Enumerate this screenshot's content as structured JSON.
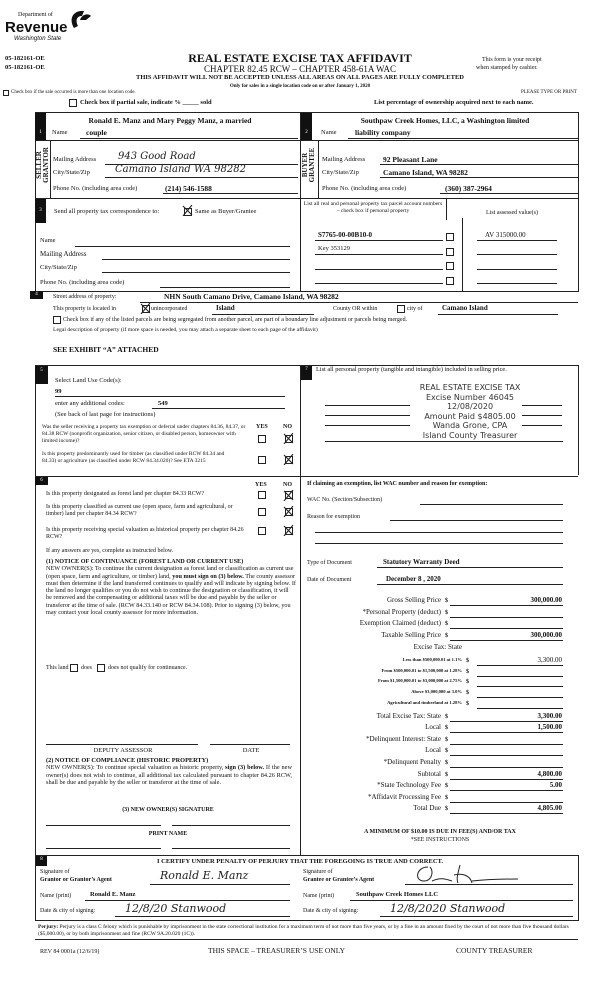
{
  "header": {
    "logo": {
      "line1": "Department of",
      "line2": "Revenue",
      "line3": "Washington State"
    },
    "codes": [
      "05-182161-OE",
      "05-182161-OE"
    ],
    "title": "REAL ESTATE EXCISE TAX AFFIDAVIT",
    "subtitle": "CHAPTER 82.45 RCW – CHAPTER 458-61A WAC",
    "receipt_note_1": "This form is your receipt",
    "receipt_note_2": "when stamped by cashier.",
    "warning": "THIS AFFIDAVIT WILL NOT BE ACCEPTED UNLESS ALL AREAS ON ALL PAGES ARE FULLY COMPLETED",
    "only_for": "Only for sales in a single location code on or after January 1, 2020",
    "check_location": "Check box if the sale occurred is more than one location code.",
    "please_type": "PLEASE TYPE OR PRINT",
    "partial_sale": "Check box if partial sale, indicate % _____ sold",
    "list_percentage": "List percentage of ownership acquired next to each name."
  },
  "seller": {
    "number": "1",
    "side_label_1": "SELLER",
    "side_label_2": "GRANTOR",
    "name_line1": "Ronald E. Manz and Mary Peggy Manz, a married",
    "name_label": "Name",
    "name_line2": "couple",
    "mailing_label": "Mailing Address",
    "mailing": "943 Good Road",
    "city_label": "City/State/Zip",
    "city": "Camano Island WA 98282",
    "phone_label": "Phone No. (including area code)",
    "phone": "(214) 546-1588"
  },
  "buyer": {
    "number": "2",
    "side_label_1": "BUYER",
    "side_label_2": "GRANTEE",
    "name_line1": "Southpaw Creek Homes, LLC, a Washington limited",
    "name_label": "Name",
    "name_line2": "liability company",
    "mailing_label": "Mailing Address",
    "mailing": "92 Pleasant Lane",
    "city_label": "City/State/Zip",
    "city": "Camano Island, WA 98282",
    "phone_label": "Phone No. (including area code)",
    "phone": "(360) 387-2964"
  },
  "section3": {
    "number": "3",
    "send_to": "Send all property tax correspondence to:",
    "same_as": "Same as Buyer/Grantee",
    "same_as_checked": true,
    "name_label": "Name",
    "mailing_label": "Mailing Address",
    "city_label": "City/State/Zip",
    "phone_label": "Phone No. (including area code)",
    "parcel_header": "List all real and personal property tax parcel account numbers – check box if personal property",
    "assessed_header": "List assessed value(s)",
    "parcels": [
      {
        "number": "S7765-00-00B10-0",
        "value": "AV 315000.00"
      },
      {
        "number": "Key 353129",
        "value": ""
      },
      {
        "number": "",
        "value": ""
      },
      {
        "number": "",
        "value": ""
      }
    ]
  },
  "section4": {
    "number": "4",
    "street_label": "Street address of property:",
    "street": "NHN South Camano Drive, Camano Island, WA  98282",
    "located_in": "This property is located in",
    "unincorporated": "unincorporated",
    "unincorporated_checked": true,
    "county": "Island",
    "county_or": "County OR  within",
    "city_of": "city of",
    "city": "Camano Island",
    "segregated": "Check box if any of the listed parcels are being segregated from another parcel, are part of a boundary line adjustment or parcels being merged.",
    "legal_desc": "Legal description of property (if more space is needed, you may attach a separate sheet to each page of the affidavit)",
    "exhibit": "SEE EXHIBIT “A” ATTACHED"
  },
  "section5": {
    "number": "5",
    "land_use_label": "Select Land Use Code(s):",
    "land_use_code": "99",
    "additional_label": "enter any additional codes:",
    "additional_code": "549",
    "see_back": "(See back of last page for instructions)",
    "yes": "YES",
    "no": "NO",
    "questions": [
      {
        "text": "Was the seller receiving a property tax exemption or deferral under chapters 84.36, 84.37, or 84.38 RCW (nonprofit organization, senior citizen, or disabled person, homeowner with limited income)?",
        "answer": "NO"
      },
      {
        "text": "Is this property predominantly used for timber (as classified under RCW 84.34 and 84.33) or agriculture (as classified under RCW 84.34.020)? See ETA 3215",
        "answer": "NO"
      }
    ]
  },
  "section6": {
    "number": "6",
    "yes": "YES",
    "no": "NO",
    "questions": [
      {
        "text": "Is this property designated as forest land per chapter 84.33 RCW?",
        "answer": "NO"
      },
      {
        "text": "Is this property classified as current use (open space, farm and agricultural, or timber) land per chapter 84.34 RCW?",
        "answer": "NO"
      },
      {
        "text": "Is this property receiving special valuation as historical property per chapter 84.26 RCW?",
        "answer": "NO"
      }
    ],
    "if_yes": "If any answers are yes, complete as instructed below.",
    "notice1_title": "(1) NOTICE OF CONTINUANCE (FOREST LAND OR CURRENT USE)",
    "notice1_a": "NEW OWNER(S): To continue the current designation as forest land or classification as current use (open space, farm and agriculture, or timber) land,",
    "notice1_bold": "you must sign on (3) below.",
    "notice1_b": "The county assessor must then determine if the land transferred continues to qualify and will indicate by signing below. If the land no longer qualifies or you do not wish to continue the designation or classification, it will be removed and the compensating or additional taxes will be due and payable by the seller or transferor at the time of sale. (RCW 84.33.140 or RCW 84.34.108). Prior to signing (3) below, you may contact your local county assessor for more information.",
    "this_land": "This land",
    "does": "does",
    "does_not": "does not qualify for continuance.",
    "deputy_assessor": "DEPUTY ASSESSOR",
    "date": "DATE",
    "notice2_title": "(2) NOTICE OF COMPLIANCE (HISTORIC PROPERTY)",
    "notice2_a": "NEW OWNER(S): To continue special valuation as historic property,",
    "notice2_bold": "sign (3) below.",
    "notice2_b": "If the new owner(s) does not wish to continue, all additional tax calculated pursuant to chapter 84.26 RCW, shall be due and payable by the seller or transferor at the time of sale.",
    "notice3_title": "(3)  NEW OWNER(S) SIGNATURE",
    "print_name": "PRINT NAME"
  },
  "section7": {
    "number": "7",
    "personal_property": "List all personal property (tangible and intangible) included in selling price.",
    "stamp": [
      "REAL ESTATE EXCISE TAX",
      "Excise Number 46045",
      "12/08/2020",
      "Amount Paid $4805.00",
      "Wanda Grone, CPA",
      "Island County Treasurer"
    ],
    "exemption_header": "If claiming an exemption, list WAC number and reason for exemption:",
    "wac_label": "WAC No. (Section/Subsection)",
    "reason_label": "Reason for exemption",
    "doc_type_label": "Type of Document",
    "doc_type": "Statutory Warranty Deed",
    "doc_date_label": "Date of Document",
    "doc_date": "December 8 , 2020"
  },
  "tax": {
    "currency": "$",
    "rows": [
      {
        "label": "Gross Selling Price",
        "value": "300,000.00",
        "kind": "main"
      },
      {
        "label": "*Personal Property (deduct)",
        "value": "",
        "kind": "main"
      },
      {
        "label": "Exemption Claimed (deduct)",
        "value": "",
        "kind": "main"
      },
      {
        "label": "Taxable Selling Price",
        "value": "300,000.00",
        "kind": "main"
      },
      {
        "label": "Excise Tax:  State",
        "value": null,
        "kind": "heading"
      },
      {
        "label": "Less than $500,000.01 at 1.1%",
        "value": "3,300.00",
        "kind": "small"
      },
      {
        "label": "From $500,000.01 to $1,500,000 at 1.28%",
        "value": "",
        "kind": "small"
      },
      {
        "label": "From $1,500,000.01 to $3,000,000 at 2.75%",
        "value": "",
        "kind": "small"
      },
      {
        "label": "Above $3,000,000 at 3.0%",
        "value": "",
        "kind": "small"
      },
      {
        "label": "Agricultural and timberland at 1.28%",
        "value": "",
        "kind": "small"
      },
      {
        "label": "Total Excise Tax: State",
        "value": "3,300.00",
        "kind": "main"
      },
      {
        "label": "Local",
        "value": "1,500.00",
        "kind": "main"
      },
      {
        "label": "*Delinquent Interest: State",
        "value": "",
        "kind": "main"
      },
      {
        "label": "Local",
        "value": "",
        "kind": "main"
      },
      {
        "label": "*Delinquent Penalty",
        "value": "",
        "kind": "main"
      },
      {
        "label": "Subtotal",
        "value": "4,800.00",
        "kind": "main"
      },
      {
        "label": "*State Technology Fee",
        "value": "5.00",
        "kind": "main"
      },
      {
        "label": "*Affidavit Processing Fee",
        "value": "",
        "kind": "main"
      },
      {
        "label": "Total Due",
        "value": "4,805.00",
        "kind": "main"
      }
    ],
    "minimum": "A MINIMUM OF $10.00 IS DUE IN FEE(S) AND/OR TAX",
    "see_instructions": "*SEE INSTRUCTIONS"
  },
  "section8": {
    "number": "8",
    "certify": "I CERTIFY UNDER PENALTY OF PERJURY THAT THE FOREGOING IS TRUE AND CORRECT.",
    "grantor_sig_label_1": "Signature of",
    "grantor_sig_label_2": "Grantor or Grantor’s Agent",
    "grantor_signature": "Ronald E. Manz",
    "grantee_sig_label_1": "Signature of",
    "grantee_sig_label_2": "Grantee or Grantee’s Agent",
    "grantee_signature": "",
    "name_print_label": "Name (print)",
    "grantor_name": "Ronald E. Manz",
    "grantee_name": "Southpaw Creek Homes LLC",
    "date_city_label": "Date & city of signing:",
    "grantor_date_city": "12/8/20 Stanwood",
    "grantee_date_city": "12/8/2020 Stanwood",
    "perjury_label": "Perjury:",
    "perjury_text": "Perjury is a class C felony which is punishable by imprisonment in the state correctional institution for a maximum term of not more than five years, or by a fine in an amount fixed by the court of not more than five thousand dollars ($5,000.00), or by both imprisonment and fine (RCW 9A.20.020 (1C))."
  },
  "footer": {
    "rev": "REV 84 0001a (12/6/19)",
    "treasurer_space": "THIS SPACE – TREASURER’S USE ONLY",
    "county_treasurer": "COUNTY TREASURER"
  }
}
